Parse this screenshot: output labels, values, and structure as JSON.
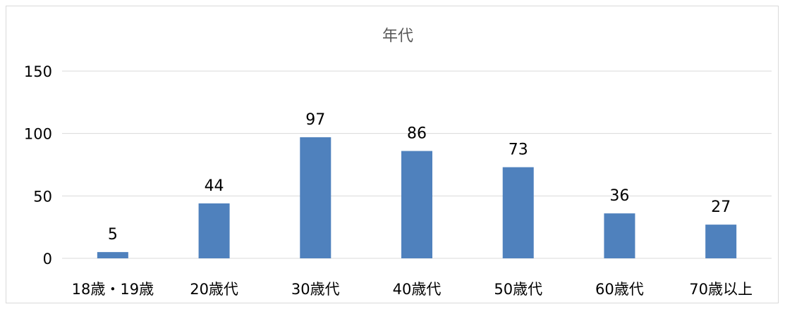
{
  "chart_data": {
    "type": "bar",
    "title": "年代",
    "categories": [
      "18歳・19歳",
      "20歳代",
      "30歳代",
      "40歳代",
      "50歳代",
      "60歳代",
      "70歳以上"
    ],
    "values": [
      5,
      44,
      97,
      86,
      73,
      36,
      27
    ],
    "ylim": [
      0,
      150
    ],
    "yticks": [
      0,
      50,
      100,
      150
    ],
    "grid": true,
    "bar_color": "#4f81bd",
    "data_labels": true
  }
}
